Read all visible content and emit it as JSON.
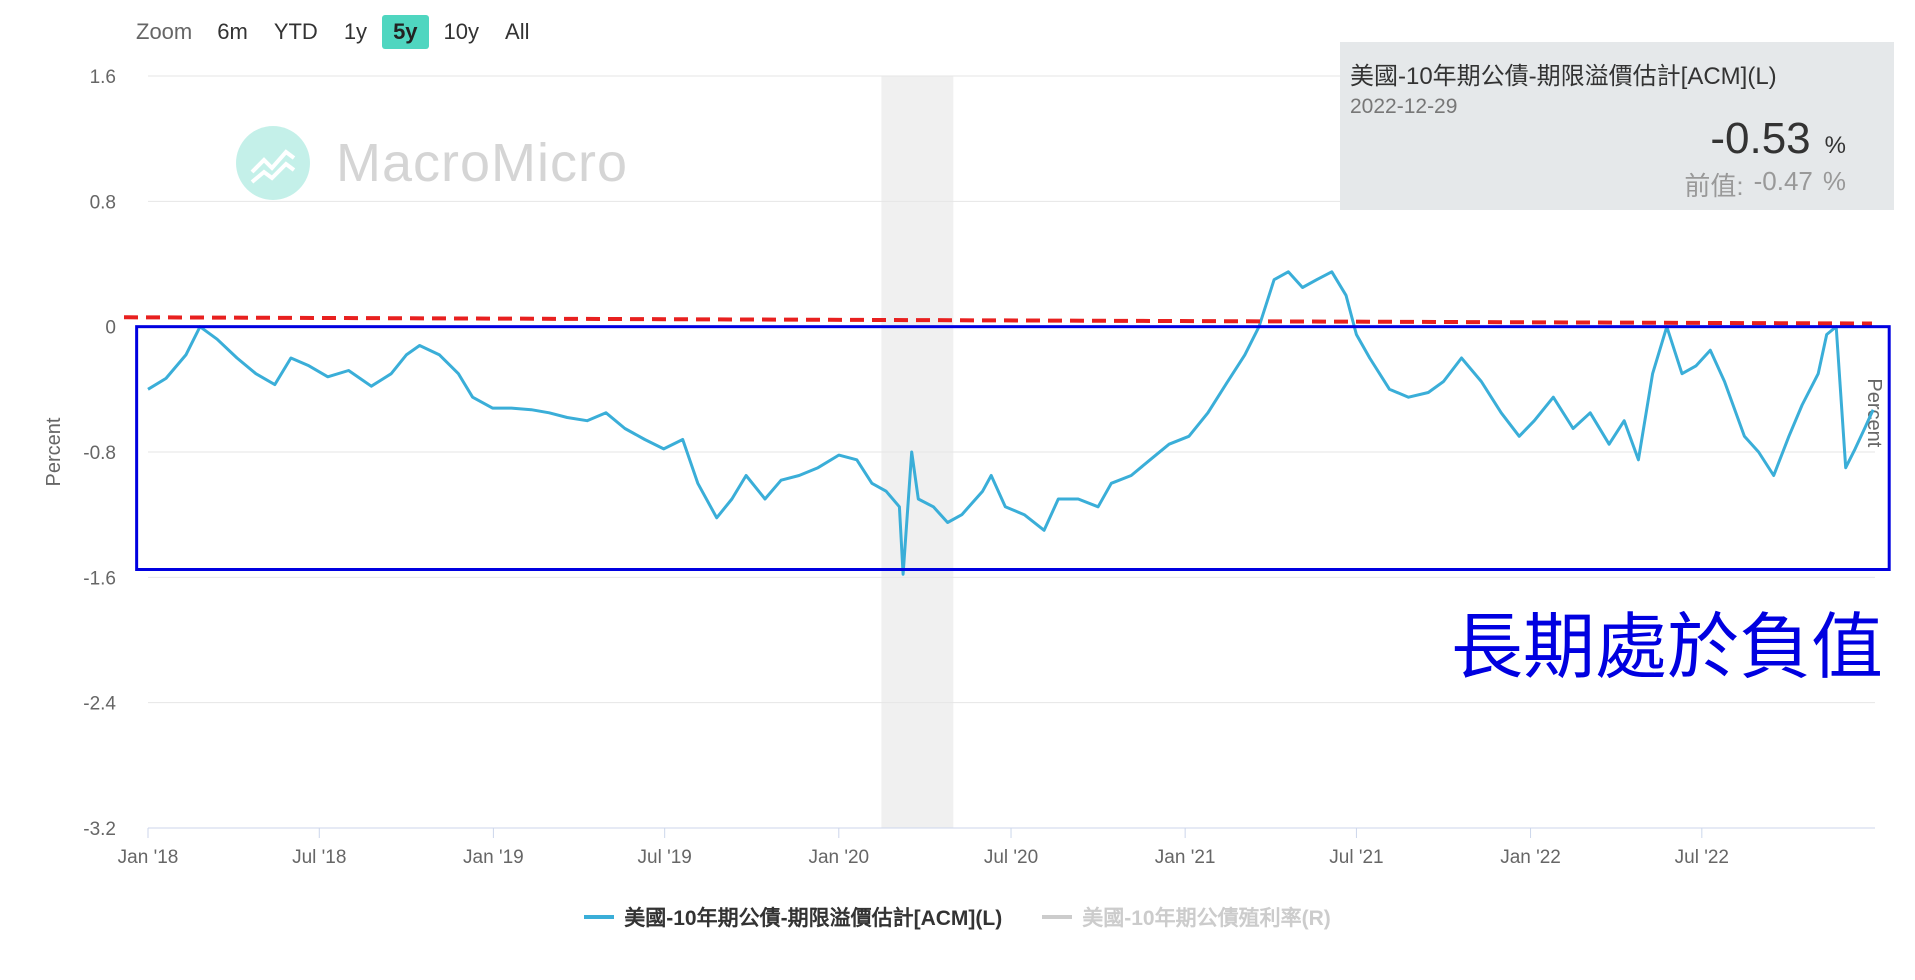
{
  "zoom": {
    "label": "Zoom",
    "options": [
      "6m",
      "YTD",
      "1y",
      "5y",
      "10y",
      "All"
    ],
    "selected": "5y"
  },
  "tooltip": {
    "title": "美國-10年期公債-期限溢價估計[ACM](L)",
    "date": "2022-12-29",
    "value": "-0.53",
    "unit": "%",
    "prev_label": "前值:",
    "prev_value": "-0.47",
    "prev_unit": "%"
  },
  "watermark": "MacroMicro",
  "annotation": "長期處於負值",
  "legend": [
    {
      "label": "美國-10年期公債-期限溢價估計[ACM](L)",
      "color": "#3aaed8",
      "active": true
    },
    {
      "label": "美國-10年期公債殖利率(R)",
      "color": "#cccccc",
      "active": false
    }
  ],
  "chart_data": {
    "type": "line",
    "ylabel_left": "Percent",
    "ylabel_right": "Percent",
    "ylim": [
      -3.2,
      1.6
    ],
    "yticks": [
      "1.6",
      "0.8",
      "0",
      "-0.8",
      "-1.6",
      "-2.4",
      "-3.2"
    ],
    "xlim": [
      "2018-01-01",
      "2022-12-31"
    ],
    "xticks": [
      {
        "date": "2018-01-01",
        "label": "Jan '18"
      },
      {
        "date": "2018-07-01",
        "label": "Jul '18"
      },
      {
        "date": "2019-01-01",
        "label": "Jan '19"
      },
      {
        "date": "2019-07-01",
        "label": "Jul '19"
      },
      {
        "date": "2020-01-01",
        "label": "Jan '20"
      },
      {
        "date": "2020-07-01",
        "label": "Jul '20"
      },
      {
        "date": "2021-01-01",
        "label": "Jan '21"
      },
      {
        "date": "2021-07-01",
        "label": "Jul '21"
      },
      {
        "date": "2022-01-01",
        "label": "Jan '22"
      },
      {
        "date": "2022-07-01",
        "label": "Jul '22"
      }
    ],
    "shaded_band": {
      "from": "2020-02-15",
      "to": "2020-05-01",
      "color": "#f0f0f0"
    },
    "series": [
      {
        "name": "美國-10年期公債-期限溢價估計[ACM](L)",
        "color": "#3aaed8",
        "points": [
          [
            "2018-01-01",
            -0.4
          ],
          [
            "2018-01-20",
            -0.33
          ],
          [
            "2018-02-10",
            -0.18
          ],
          [
            "2018-02-25",
            0.0
          ],
          [
            "2018-03-15",
            -0.08
          ],
          [
            "2018-04-05",
            -0.2
          ],
          [
            "2018-04-25",
            -0.3
          ],
          [
            "2018-05-15",
            -0.37
          ],
          [
            "2018-06-01",
            -0.2
          ],
          [
            "2018-06-20",
            -0.25
          ],
          [
            "2018-07-10",
            -0.32
          ],
          [
            "2018-08-01",
            -0.28
          ],
          [
            "2018-08-25",
            -0.38
          ],
          [
            "2018-09-15",
            -0.3
          ],
          [
            "2018-10-01",
            -0.18
          ],
          [
            "2018-10-15",
            -0.12
          ],
          [
            "2018-11-05",
            -0.18
          ],
          [
            "2018-11-25",
            -0.3
          ],
          [
            "2018-12-10",
            -0.45
          ],
          [
            "2018-12-31",
            -0.52
          ],
          [
            "2019-01-20",
            -0.52
          ],
          [
            "2019-02-10",
            -0.53
          ],
          [
            "2019-03-01",
            -0.55
          ],
          [
            "2019-03-20",
            -0.58
          ],
          [
            "2019-04-10",
            -0.6
          ],
          [
            "2019-04-30",
            -0.55
          ],
          [
            "2019-05-20",
            -0.65
          ],
          [
            "2019-06-10",
            -0.72
          ],
          [
            "2019-06-30",
            -0.78
          ],
          [
            "2019-07-20",
            -0.72
          ],
          [
            "2019-08-05",
            -1.0
          ],
          [
            "2019-08-25",
            -1.22
          ],
          [
            "2019-09-10",
            -1.1
          ],
          [
            "2019-09-25",
            -0.95
          ],
          [
            "2019-10-15",
            -1.1
          ],
          [
            "2019-11-01",
            -0.98
          ],
          [
            "2019-11-20",
            -0.95
          ],
          [
            "2019-12-10",
            -0.9
          ],
          [
            "2020-01-01",
            -0.82
          ],
          [
            "2020-01-20",
            -0.85
          ],
          [
            "2020-02-05",
            -1.0
          ],
          [
            "2020-02-20",
            -1.05
          ],
          [
            "2020-03-05",
            -1.15
          ],
          [
            "2020-03-09",
            -1.58
          ],
          [
            "2020-03-18",
            -0.8
          ],
          [
            "2020-03-25",
            -1.1
          ],
          [
            "2020-04-10",
            -1.15
          ],
          [
            "2020-04-25",
            -1.25
          ],
          [
            "2020-05-10",
            -1.2
          ],
          [
            "2020-06-01",
            -1.05
          ],
          [
            "2020-06-10",
            -0.95
          ],
          [
            "2020-06-25",
            -1.15
          ],
          [
            "2020-07-15",
            -1.2
          ],
          [
            "2020-08-05",
            -1.3
          ],
          [
            "2020-08-20",
            -1.1
          ],
          [
            "2020-09-10",
            -1.1
          ],
          [
            "2020-10-01",
            -1.15
          ],
          [
            "2020-10-15",
            -1.0
          ],
          [
            "2020-11-05",
            -0.95
          ],
          [
            "2020-11-25",
            -0.85
          ],
          [
            "2020-12-15",
            -0.75
          ],
          [
            "2021-01-05",
            -0.7
          ],
          [
            "2021-01-25",
            -0.55
          ],
          [
            "2021-02-15",
            -0.35
          ],
          [
            "2021-03-05",
            -0.18
          ],
          [
            "2021-03-20",
            0.0
          ],
          [
            "2021-04-05",
            0.3
          ],
          [
            "2021-04-20",
            0.35
          ],
          [
            "2021-05-05",
            0.25
          ],
          [
            "2021-05-20",
            0.3
          ],
          [
            "2021-06-05",
            0.35
          ],
          [
            "2021-06-20",
            0.2
          ],
          [
            "2021-07-01",
            -0.05
          ],
          [
            "2021-07-15",
            -0.2
          ],
          [
            "2021-08-05",
            -0.4
          ],
          [
            "2021-08-25",
            -0.45
          ],
          [
            "2021-09-15",
            -0.42
          ],
          [
            "2021-10-01",
            -0.35
          ],
          [
            "2021-10-20",
            -0.2
          ],
          [
            "2021-11-10",
            -0.35
          ],
          [
            "2021-12-01",
            -0.55
          ],
          [
            "2021-12-20",
            -0.7
          ],
          [
            "2022-01-05",
            -0.6
          ],
          [
            "2022-01-25",
            -0.45
          ],
          [
            "2022-02-15",
            -0.65
          ],
          [
            "2022-03-05",
            -0.55
          ],
          [
            "2022-03-25",
            -0.75
          ],
          [
            "2022-04-10",
            -0.6
          ],
          [
            "2022-04-25",
            -0.85
          ],
          [
            "2022-05-10",
            -0.3
          ],
          [
            "2022-05-25",
            0.0
          ],
          [
            "2022-06-10",
            -0.3
          ],
          [
            "2022-06-25",
            -0.25
          ],
          [
            "2022-07-10",
            -0.15
          ],
          [
            "2022-07-25",
            -0.35
          ],
          [
            "2022-08-15",
            -0.7
          ],
          [
            "2022-08-30",
            -0.8
          ],
          [
            "2022-09-15",
            -0.95
          ],
          [
            "2022-10-01",
            -0.7
          ],
          [
            "2022-10-15",
            -0.5
          ],
          [
            "2022-11-01",
            -0.3
          ],
          [
            "2022-11-10",
            -0.05
          ],
          [
            "2022-11-20",
            0.0
          ],
          [
            "2022-11-30",
            -0.9
          ],
          [
            "2022-12-10",
            -0.78
          ],
          [
            "2022-12-20",
            -0.65
          ],
          [
            "2022-12-29",
            -0.53
          ]
        ]
      }
    ],
    "overlays": {
      "dashed_line": {
        "y_start": 0.06,
        "y_end": 0.02,
        "color": "#e8201f"
      },
      "box": {
        "x_from": "2017-12-20",
        "x_to": "2023-01-15",
        "y_from": -1.55,
        "y_to": 0.0,
        "color": "#0000e0"
      }
    }
  }
}
